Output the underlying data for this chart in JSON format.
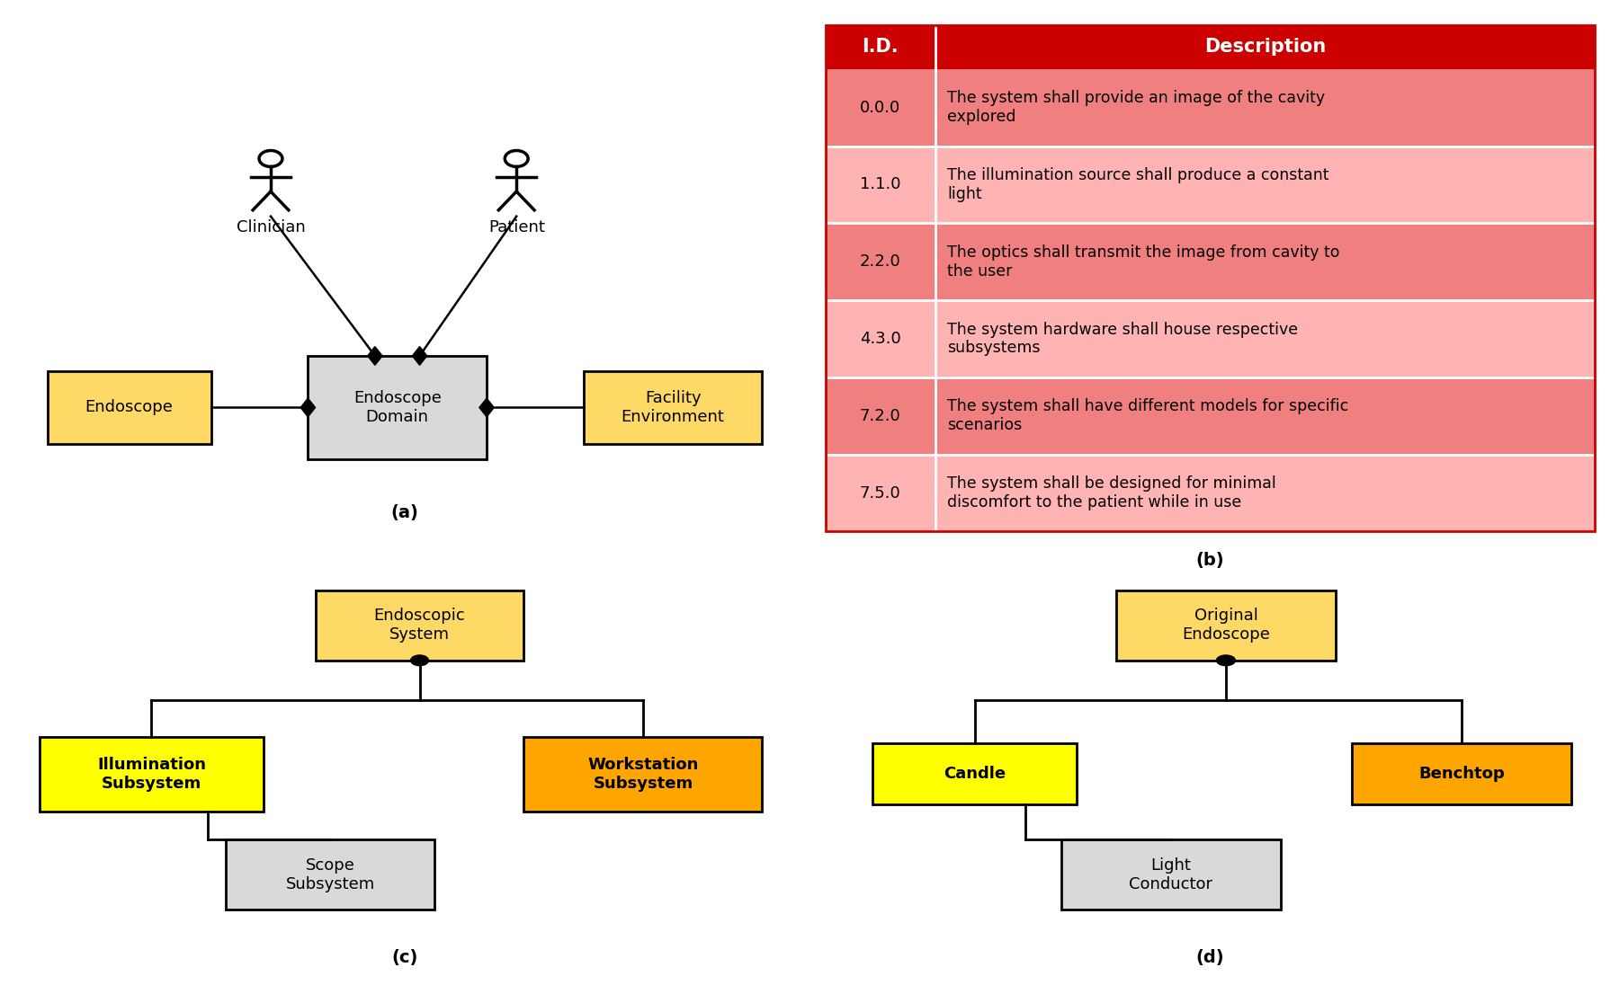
{
  "bg_color": "#ffffff",
  "table": {
    "header_bg": "#cc0000",
    "header_text_color": "#ffffff",
    "header_id": "I.D.",
    "header_desc": "Description",
    "row_colors_alt": [
      "#f08080",
      "#ffb3b3"
    ],
    "rows": [
      {
        "id": "0.0.0",
        "desc": "The system shall provide an image of the cavity\nexplored"
      },
      {
        "id": "1.1.0",
        "desc": "The illumination source shall produce a constant\nlight"
      },
      {
        "id": "2.2.0",
        "desc": "The optics shall transmit the image from cavity to\nthe user"
      },
      {
        "id": "4.3.0",
        "desc": "The system hardware shall house respective\nsubsystems"
      },
      {
        "id": "7.2.0",
        "desc": "The system shall have different models for specific\nscenarios"
      },
      {
        "id": "7.5.0",
        "desc": "The system shall be designed for minimal\ndiscomfort to the patient while in use"
      }
    ]
  },
  "label_a": "(a)",
  "label_b": "(b)",
  "label_c": "(c)",
  "label_d": "(d)",
  "diagram_a": {
    "clinician_label": "Clinician",
    "patient_label": "Patient",
    "endoscope_label": "Endoscope",
    "domain_label": "Endoscope\nDomain",
    "facility_label": "Facility\nEnvironment",
    "box_yellow": "#ffd966",
    "box_lightgray": "#d9d9d9"
  },
  "diagram_c": {
    "root_label": "Endoscopic\nSystem",
    "left_label": "Illumination\nSubsystem",
    "center_label": "Scope\nSubsystem",
    "right_label": "Workstation\nSubsystem",
    "root_color": "#ffd966",
    "left_color": "#ffff00",
    "center_color": "#d9d9d9",
    "right_color": "#ffa500"
  },
  "diagram_d": {
    "root_label": "Original\nEndoscope",
    "left_label": "Candle",
    "center_label": "Light\nConductor",
    "right_label": "Benchtop",
    "root_color": "#ffd966",
    "left_color": "#ffff00",
    "center_color": "#d9d9d9",
    "right_color": "#ffa500"
  }
}
